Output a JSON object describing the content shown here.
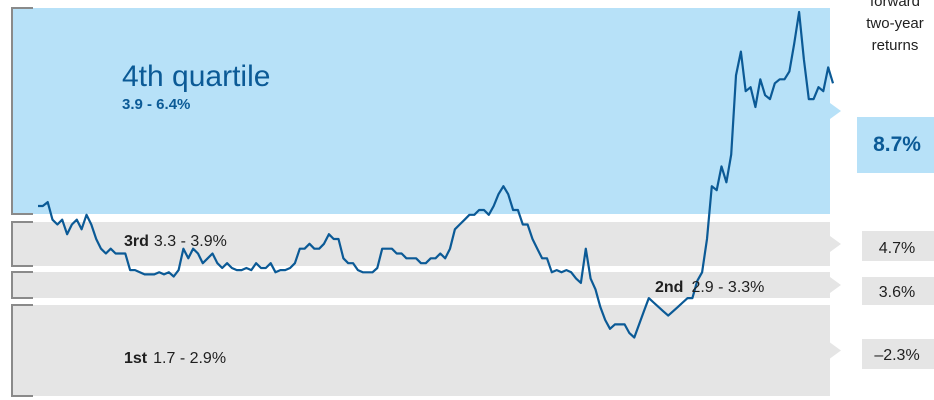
{
  "colors": {
    "top_band": "#b7e1f8",
    "lower_band": "#e5e5e5",
    "line": "#0b5a96",
    "bracket": "#8a8a8a",
    "text_dark": "#1f1f1f",
    "text_blue": "#0b5a96"
  },
  "header": {
    "line1": "forward",
    "line2": "two-year",
    "line3": "returns"
  },
  "chart_data": {
    "type": "line",
    "title": "",
    "xlabel": "",
    "ylabel": "",
    "ylim": [
      1.3,
      6.5
    ],
    "x_index_range": [
      0,
      157
    ],
    "quartiles": [
      {
        "rank": 4,
        "name": "4th quartile",
        "range": "3.9 - 6.4%",
        "low": 3.9,
        "high": 6.4,
        "return": "8.7%"
      },
      {
        "rank": 3,
        "name": "3rd",
        "range": "3.3 - 3.9%",
        "low": 3.3,
        "high": 3.9,
        "return": "4.7%"
      },
      {
        "rank": 2,
        "name": "2nd",
        "range": "2.9 - 3.3%",
        "low": 2.9,
        "high": 3.3,
        "return": "3.6%"
      },
      {
        "rank": 1,
        "name": "1st",
        "range": "1.7 - 2.9%",
        "low": 1.7,
        "high": 2.9,
        "return": "–2.3%"
      }
    ],
    "series": [
      {
        "values": [
          3.95,
          3.95,
          4.0,
          3.8,
          3.75,
          3.8,
          3.65,
          3.75,
          3.8,
          3.7,
          3.85,
          3.75,
          3.6,
          3.5,
          3.45,
          3.5,
          3.45,
          3.45,
          3.45,
          3.25,
          3.25,
          3.2,
          3.15,
          3.15,
          3.15,
          3.2,
          3.15,
          3.2,
          3.1,
          3.25,
          3.5,
          3.4,
          3.5,
          3.45,
          3.35,
          3.4,
          3.45,
          3.35,
          3.3,
          3.35,
          3.3,
          3.25,
          3.25,
          3.3,
          3.25,
          3.35,
          3.3,
          3.3,
          3.35,
          3.2,
          3.25,
          3.25,
          3.3,
          3.35,
          3.5,
          3.5,
          3.55,
          3.5,
          3.5,
          3.55,
          3.65,
          3.6,
          3.6,
          3.4,
          3.35,
          3.35,
          3.25,
          3.2,
          3.2,
          3.2,
          3.3,
          3.5,
          3.5,
          3.5,
          3.45,
          3.45,
          3.4,
          3.4,
          3.4,
          3.35,
          3.35,
          3.4,
          3.4,
          3.45,
          3.4,
          3.5,
          3.7,
          3.75,
          3.8,
          3.85,
          3.85,
          3.9,
          3.9,
          3.85,
          3.95,
          4.1,
          4.2,
          4.1,
          3.9,
          3.9,
          3.75,
          3.75,
          3.6,
          3.5,
          3.4,
          3.4,
          3.2,
          3.25,
          3.2,
          3.25,
          3.2,
          3.05,
          2.95,
          3.5,
          3.05,
          2.85,
          2.65,
          2.5,
          2.4,
          2.45,
          2.45,
          2.45,
          2.35,
          2.3,
          2.45,
          2.6,
          2.75,
          2.7,
          2.65,
          2.6,
          2.55,
          2.6,
          2.65,
          2.7,
          2.75,
          2.75,
          3.0,
          3.2,
          3.6,
          4.2,
          4.15,
          4.45,
          4.25,
          4.6,
          5.6,
          5.9,
          5.4,
          5.45,
          5.2,
          5.55,
          5.35,
          5.3,
          5.5,
          5.55,
          5.55,
          5.65,
          6.0,
          6.4,
          5.8,
          5.3,
          5.3,
          5.45,
          5.4,
          5.7,
          5.5
        ]
      }
    ]
  }
}
